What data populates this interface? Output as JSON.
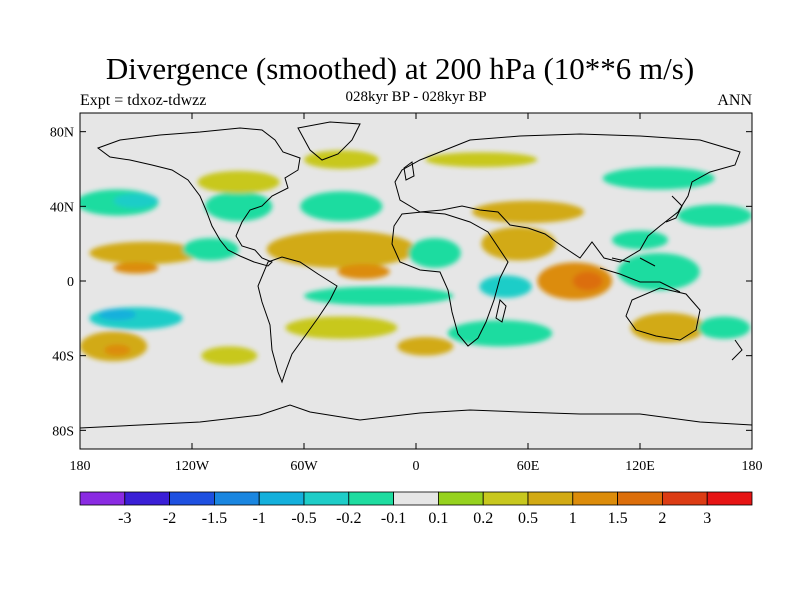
{
  "title": "Divergence (smoothed) at 200 hPa (10**6 m/s)",
  "subtitle": "028kyr BP - 028kyr BP",
  "expt": "Expt = tdxoz-tdwzz",
  "season": "ANN",
  "map": {
    "lat_ticks": [
      {
        "lat": 80,
        "label": "80N"
      },
      {
        "lat": 40,
        "label": "40N"
      },
      {
        "lat": 0,
        "label": "0"
      },
      {
        "lat": -40,
        "label": "40S"
      },
      {
        "lat": -80,
        "label": "80S"
      }
    ],
    "lon_ticks": [
      {
        "lon": -180,
        "label": "180"
      },
      {
        "lon": -120,
        "label": "120W"
      },
      {
        "lon": -60,
        "label": "60W"
      },
      {
        "lon": 0,
        "label": "0"
      },
      {
        "lon": 60,
        "label": "60E"
      },
      {
        "lon": 120,
        "label": "120E"
      },
      {
        "lon": 180,
        "label": "180"
      }
    ],
    "lon_range": [
      -180,
      180
    ],
    "lat_range": [
      -90,
      90
    ],
    "background_color": "#e6e6e6"
  },
  "colorbar": {
    "colors": [
      "#8a2be2",
      "#3a1fd6",
      "#1e50e0",
      "#1a86e0",
      "#14b0dc",
      "#1ecdc8",
      "#1edca0",
      "#e6e6e6",
      "#96d21e",
      "#c8c81e",
      "#d2aa14",
      "#dc8c0a",
      "#dc6e0a",
      "#dc3c14",
      "#e61414"
    ],
    "labels": [
      "-3",
      "-2",
      "-1.5",
      "-1",
      "-0.5",
      "-0.2",
      "-0.1",
      "0.1",
      "0.2",
      "0.5",
      "1",
      "1.5",
      "2",
      "3"
    ]
  },
  "anomaly_regions": [
    {
      "lon": -160,
      "lat": 42,
      "rlon": 22,
      "rlat": 7,
      "level": "-0.2"
    },
    {
      "lon": -150,
      "lat": 43,
      "rlon": 12,
      "rlat": 4,
      "level": "-0.5"
    },
    {
      "lon": -95,
      "lat": 40,
      "rlon": 18,
      "rlat": 8,
      "level": "-0.2"
    },
    {
      "lon": -40,
      "lat": 40,
      "rlon": 22,
      "rlat": 8,
      "level": "-0.2"
    },
    {
      "lon": 60,
      "lat": 37,
      "rlon": 30,
      "rlat": 6,
      "level": "0.5"
    },
    {
      "lon": -95,
      "lat": 53,
      "rlon": 22,
      "rlat": 6,
      "level": "0.2"
    },
    {
      "lon": -40,
      "lat": 65,
      "rlon": 20,
      "rlat": 5,
      "level": "0.2"
    },
    {
      "lon": 35,
      "lat": 65,
      "rlon": 30,
      "rlat": 4,
      "level": "0.2"
    },
    {
      "lon": 130,
      "lat": 55,
      "rlon": 30,
      "rlat": 6,
      "level": "-0.2"
    },
    {
      "lon": 160,
      "lat": 35,
      "rlon": 20,
      "rlat": 6,
      "level": "-0.2"
    },
    {
      "lon": -145,
      "lat": 15,
      "rlon": 30,
      "rlat": 6,
      "level": "0.5"
    },
    {
      "lon": -150,
      "lat": 7,
      "rlon": 12,
      "rlat": 3,
      "level": "1"
    },
    {
      "lon": -110,
      "lat": 17,
      "rlon": 15,
      "rlat": 6,
      "level": "-0.2"
    },
    {
      "lon": -40,
      "lat": 17,
      "rlon": 40,
      "rlat": 10,
      "level": "0.5"
    },
    {
      "lon": -28,
      "lat": 5,
      "rlon": 14,
      "rlat": 4,
      "level": "1"
    },
    {
      "lon": 10,
      "lat": 15,
      "rlon": 14,
      "rlat": 8,
      "level": "-0.2"
    },
    {
      "lon": 55,
      "lat": 20,
      "rlon": 20,
      "rlat": 9,
      "level": "0.5"
    },
    {
      "lon": 85,
      "lat": 0,
      "rlon": 20,
      "rlat": 10,
      "level": "1"
    },
    {
      "lon": 92,
      "lat": 0,
      "rlon": 8,
      "rlat": 5,
      "level": "1.5"
    },
    {
      "lon": 130,
      "lat": 5,
      "rlon": 22,
      "rlat": 10,
      "level": "-0.2"
    },
    {
      "lon": 120,
      "lat": 22,
      "rlon": 15,
      "rlat": 5,
      "level": "-0.2"
    },
    {
      "lon": -150,
      "lat": -20,
      "rlon": 25,
      "rlat": 6,
      "level": "-0.5"
    },
    {
      "lon": -160,
      "lat": -18,
      "rlon": 10,
      "rlat": 3,
      "level": "-1"
    },
    {
      "lon": -162,
      "lat": -35,
      "rlon": 18,
      "rlat": 8,
      "level": "0.5"
    },
    {
      "lon": -160,
      "lat": -37,
      "rlon": 7,
      "rlat": 3,
      "level": "1"
    },
    {
      "lon": -20,
      "lat": -8,
      "rlon": 40,
      "rlat": 5,
      "level": "-0.2"
    },
    {
      "lon": 48,
      "lat": -3,
      "rlon": 14,
      "rlat": 6,
      "level": "-0.5"
    },
    {
      "lon": -40,
      "lat": -25,
      "rlon": 30,
      "rlat": 6,
      "level": "0.2"
    },
    {
      "lon": 45,
      "lat": -28,
      "rlon": 28,
      "rlat": 7,
      "level": "-0.2"
    },
    {
      "lon": 135,
      "lat": -25,
      "rlon": 20,
      "rlat": 8,
      "level": "0.5"
    },
    {
      "lon": 165,
      "lat": -25,
      "rlon": 14,
      "rlat": 6,
      "level": "-0.2"
    },
    {
      "lon": 5,
      "lat": -35,
      "rlon": 15,
      "rlat": 5,
      "level": "0.5"
    },
    {
      "lon": -100,
      "lat": -40,
      "rlon": 15,
      "rlat": 5,
      "level": "0.2"
    }
  ]
}
